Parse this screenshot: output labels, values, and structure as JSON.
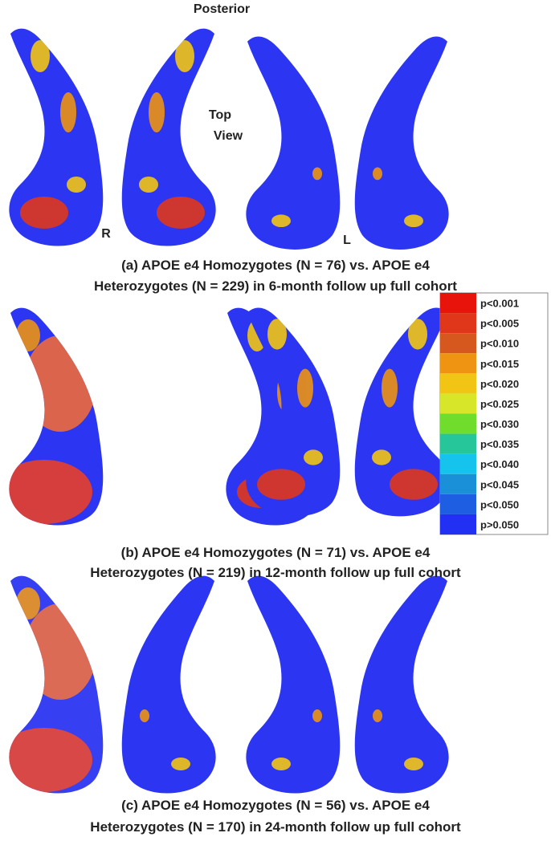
{
  "labels": {
    "top": "Posterior",
    "view": [
      "Top",
      "View"
    ],
    "right": "R",
    "left": "L"
  },
  "panels": [
    {
      "caption": [
        "(a) APOE e4 Homozygotes (N = 76) vs. APOE e4",
        "Heterozygotes (N = 229) in 6-month follow up full cohort"
      ]
    },
    {
      "caption": [
        "(b) APOE e4 Homozygotes (N = 71) vs. APOE e4",
        "Heterozygotes (N = 219) in 12-month follow up full cohort"
      ]
    },
    {
      "caption": [
        "(c) APOE e4 Homozygotes (N = 56) vs. APOE e4",
        "Heterozygotes (N = 170) in 24-month follow up full cohort"
      ]
    }
  ],
  "legend": {
    "items": [
      {
        "label": "p<0.001",
        "color": "#e8140c"
      },
      {
        "label": "p<0.005",
        "color": "#e0371a"
      },
      {
        "label": "p<0.010",
        "color": "#d6581e"
      },
      {
        "label": "p<0.015",
        "color": "#ee9312"
      },
      {
        "label": "p<0.020",
        "color": "#f2c515"
      },
      {
        "label": "p<0.025",
        "color": "#d8e629"
      },
      {
        "label": "p<0.030",
        "color": "#70dc2c"
      },
      {
        "label": "p<0.035",
        "color": "#27c59a"
      },
      {
        "label": "p<0.040",
        "color": "#16c3ec"
      },
      {
        "label": "p<0.045",
        "color": "#1a90d8"
      },
      {
        "label": "p<0.050",
        "color": "#1e5ee2"
      },
      {
        "label": "p>0.050",
        "color": "#2230f4"
      }
    ]
  }
}
